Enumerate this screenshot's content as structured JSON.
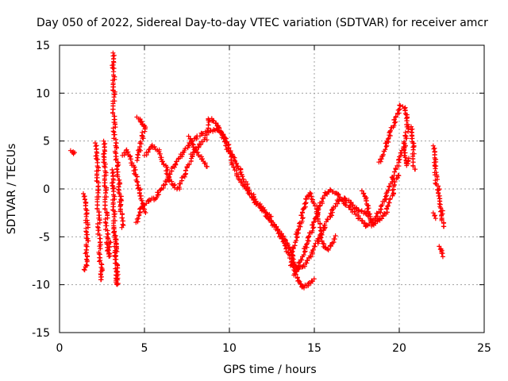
{
  "chart_data": {
    "type": "scatter",
    "title": "Day 050 of 2022, Sidereal Day-to-day VTEC variation (SDTVAR) for receiver amcr",
    "xlabel": "GPS time / hours",
    "ylabel": "SDTVAR / TECUs",
    "xlim": [
      0,
      25
    ],
    "ylim": [
      -15,
      15
    ],
    "xticks": [
      "0",
      "5",
      "10",
      "15",
      "20",
      "25"
    ],
    "yticks": [
      "-15",
      "-10",
      "-5",
      "0",
      "5",
      "10",
      "15"
    ],
    "grid": true,
    "marker": "plus",
    "series": [
      {
        "name": "SDTVAR",
        "color": "#ff0000",
        "segments": [
          [
            [
              0.65,
              4.0
            ],
            [
              0.75,
              3.8
            ],
            [
              0.85,
              3.7
            ]
          ],
          [
            [
              1.4,
              -0.5
            ],
            [
              1.5,
              -1.5
            ],
            [
              1.55,
              -2.5
            ],
            [
              1.6,
              -3.5
            ],
            [
              1.65,
              -5.2
            ],
            [
              1.55,
              -8.0
            ],
            [
              1.5,
              -8.5
            ]
          ],
          [
            [
              2.1,
              4.8
            ],
            [
              2.2,
              3.0
            ],
            [
              2.25,
              0.0
            ],
            [
              2.3,
              -3.0
            ],
            [
              2.35,
              -6.0
            ],
            [
              2.45,
              -8.5
            ],
            [
              2.5,
              -9.6
            ]
          ],
          [
            [
              2.6,
              5.0
            ],
            [
              2.65,
              2.5
            ],
            [
              2.7,
              0.0
            ],
            [
              2.75,
              -2.5
            ],
            [
              2.8,
              -5.0
            ],
            [
              2.9,
              -7.0
            ],
            [
              3.0,
              -5.5
            ]
          ],
          [
            [
              3.1,
              2.0
            ],
            [
              3.15,
              0.0
            ],
            [
              3.2,
              -2.5
            ],
            [
              3.3,
              -6.0
            ],
            [
              3.4,
              -10.0
            ],
            [
              3.35,
              -8.0
            ],
            [
              3.25,
              -4.0
            ]
          ],
          [
            [
              3.15,
              14.2
            ],
            [
              3.15,
              12.5
            ],
            [
              3.2,
              10.0
            ],
            [
              3.2,
              7.0
            ],
            [
              3.3,
              4.5
            ],
            [
              3.4,
              2.5
            ],
            [
              3.5,
              0.5
            ],
            [
              3.6,
              -1.5
            ],
            [
              3.7,
              -4.0
            ]
          ],
          [
            [
              3.7,
              3.5
            ],
            [
              3.9,
              4.0
            ],
            [
              4.1,
              3.5
            ],
            [
              4.3,
              2.5
            ],
            [
              4.5,
              1.5
            ],
            [
              4.7,
              0.0
            ],
            [
              4.9,
              -1.5
            ],
            [
              5.1,
              -2.5
            ]
          ],
          [
            [
              4.55,
              7.5
            ],
            [
              4.7,
              7.2
            ],
            [
              4.85,
              6.8
            ],
            [
              5.0,
              6.5
            ],
            [
              4.9,
              5.5
            ],
            [
              4.7,
              4.0
            ],
            [
              4.6,
              3.0
            ]
          ],
          [
            [
              4.5,
              -3.5
            ],
            [
              4.8,
              -2.0
            ],
            [
              5.2,
              -1.2
            ],
            [
              5.6,
              -1.0
            ],
            [
              6.0,
              0.0
            ],
            [
              6.4,
              1.0
            ],
            [
              6.8,
              2.5
            ],
            [
              7.2,
              3.5
            ],
            [
              7.6,
              4.6
            ],
            [
              8.0,
              5.3
            ],
            [
              8.4,
              5.8
            ],
            [
              8.8,
              6.0
            ],
            [
              9.2,
              6.2
            ],
            [
              9.5,
              5.8
            ],
            [
              9.8,
              5.0
            ],
            [
              10.2,
              3.5
            ],
            [
              10.6,
              2.0
            ],
            [
              11.0,
              0.5
            ],
            [
              11.4,
              -0.8
            ],
            [
              11.8,
              -1.8
            ],
            [
              12.2,
              -2.8
            ],
            [
              12.6,
              -3.8
            ],
            [
              13.0,
              -5.0
            ],
            [
              13.4,
              -6.5
            ],
            [
              13.7,
              -7.8
            ],
            [
              14.0,
              -8.3
            ],
            [
              14.4,
              -8.0
            ],
            [
              14.8,
              -7.0
            ],
            [
              15.2,
              -5.5
            ],
            [
              15.6,
              -4.0
            ],
            [
              16.0,
              -2.5
            ],
            [
              16.4,
              -1.2
            ],
            [
              16.8,
              -1.0
            ],
            [
              17.2,
              -1.6
            ],
            [
              17.6,
              -2.3
            ],
            [
              18.0,
              -2.5
            ],
            [
              18.4,
              -3.5
            ],
            [
              18.8,
              -2.5
            ],
            [
              19.2,
              -1.0
            ],
            [
              19.6,
              1.0
            ],
            [
              20.0,
              3.0
            ],
            [
              20.3,
              4.5
            ]
          ],
          [
            [
              5.0,
              3.5
            ],
            [
              5.4,
              4.5
            ],
            [
              5.8,
              4.0
            ],
            [
              6.2,
              2.5
            ],
            [
              6.6,
              0.5
            ],
            [
              7.0,
              0.0
            ],
            [
              7.4,
              1.5
            ],
            [
              7.8,
              3.5
            ],
            [
              8.2,
              4.5
            ],
            [
              8.6,
              5.2
            ],
            [
              8.8,
              7.3
            ],
            [
              9.0,
              7.2
            ],
            [
              9.3,
              6.5
            ],
            [
              9.6,
              5.5
            ],
            [
              10.0,
              3.8
            ],
            [
              10.4,
              1.5
            ],
            [
              10.8,
              0.5
            ],
            [
              11.2,
              -0.5
            ],
            [
              11.6,
              -1.5
            ],
            [
              12.0,
              -2.0
            ],
            [
              12.4,
              -3.0
            ],
            [
              12.8,
              -4.2
            ],
            [
              13.2,
              -5.2
            ],
            [
              13.6,
              -6.5
            ],
            [
              14.0,
              -9.5
            ],
            [
              14.3,
              -10.3
            ],
            [
              14.6,
              -10.0
            ],
            [
              15.0,
              -9.5
            ]
          ],
          [
            [
              7.6,
              5.5
            ],
            [
              8.0,
              4.0
            ],
            [
              8.4,
              3.0
            ],
            [
              8.7,
              2.3
            ]
          ],
          [
            [
              13.6,
              -8.0
            ],
            [
              13.8,
              -6.0
            ],
            [
              14.0,
              -4.5
            ],
            [
              14.2,
              -3.5
            ],
            [
              14.4,
              -2.0
            ],
            [
              14.6,
              -0.8
            ],
            [
              14.8,
              -0.5
            ],
            [
              15.2,
              -2.5
            ],
            [
              15.4,
              -5.0
            ],
            [
              15.6,
              -6.0
            ],
            [
              15.8,
              -6.3
            ],
            [
              16.0,
              -5.8
            ],
            [
              16.2,
              -5.0
            ]
          ],
          [
            [
              13.8,
              -9.0
            ],
            [
              14.2,
              -7.5
            ],
            [
              14.5,
              -6.0
            ],
            [
              14.8,
              -4.5
            ],
            [
              15.1,
              -3.0
            ],
            [
              15.4,
              -1.5
            ],
            [
              15.7,
              -0.5
            ],
            [
              16.0,
              -0.2
            ],
            [
              16.4,
              -0.5
            ],
            [
              16.8,
              -1.5
            ],
            [
              17.2,
              -2.2
            ],
            [
              17.6,
              -3.0
            ],
            [
              18.0,
              -3.8
            ],
            [
              18.4,
              -3.8
            ],
            [
              18.8,
              -3.2
            ],
            [
              19.2,
              -2.5
            ],
            [
              19.6,
              -0.5
            ],
            [
              19.9,
              1.5
            ]
          ],
          [
            [
              17.8,
              -0.2
            ],
            [
              18.0,
              -1.0
            ],
            [
              18.2,
              -2.5
            ],
            [
              18.4,
              -3.5
            ]
          ],
          [
            [
              18.8,
              2.8
            ],
            [
              19.0,
              3.5
            ],
            [
              19.3,
              5.0
            ],
            [
              19.6,
              6.5
            ],
            [
              19.9,
              7.8
            ],
            [
              20.1,
              8.8
            ]
          ],
          [
            [
              20.2,
              8.6
            ],
            [
              20.3,
              8.4
            ],
            [
              20.4,
              7.5
            ],
            [
              20.5,
              6.5
            ],
            [
              20.4,
              5.5
            ],
            [
              20.3,
              4.5
            ],
            [
              20.4,
              3.0
            ],
            [
              20.5,
              2.5
            ],
            [
              20.6,
              3.2
            ]
          ],
          [
            [
              20.7,
              6.5
            ],
            [
              20.7,
              5.5
            ],
            [
              20.8,
              4.5
            ],
            [
              20.9,
              2.0
            ]
          ],
          [
            [
              22.0,
              4.5
            ],
            [
              22.05,
              3.8
            ],
            [
              22.1,
              2.5
            ],
            [
              22.15,
              1.5
            ],
            [
              22.2,
              0.5
            ],
            [
              22.3,
              0.0
            ],
            [
              22.4,
              -1.0
            ],
            [
              22.5,
              -2.5
            ],
            [
              22.6,
              -4.0
            ]
          ],
          [
            [
              22.0,
              -2.5
            ],
            [
              22.1,
              -3.0
            ]
          ],
          [
            [
              22.35,
              -6.0
            ],
            [
              22.45,
              -6.5
            ],
            [
              22.55,
              -7.0
            ]
          ]
        ]
      }
    ]
  }
}
